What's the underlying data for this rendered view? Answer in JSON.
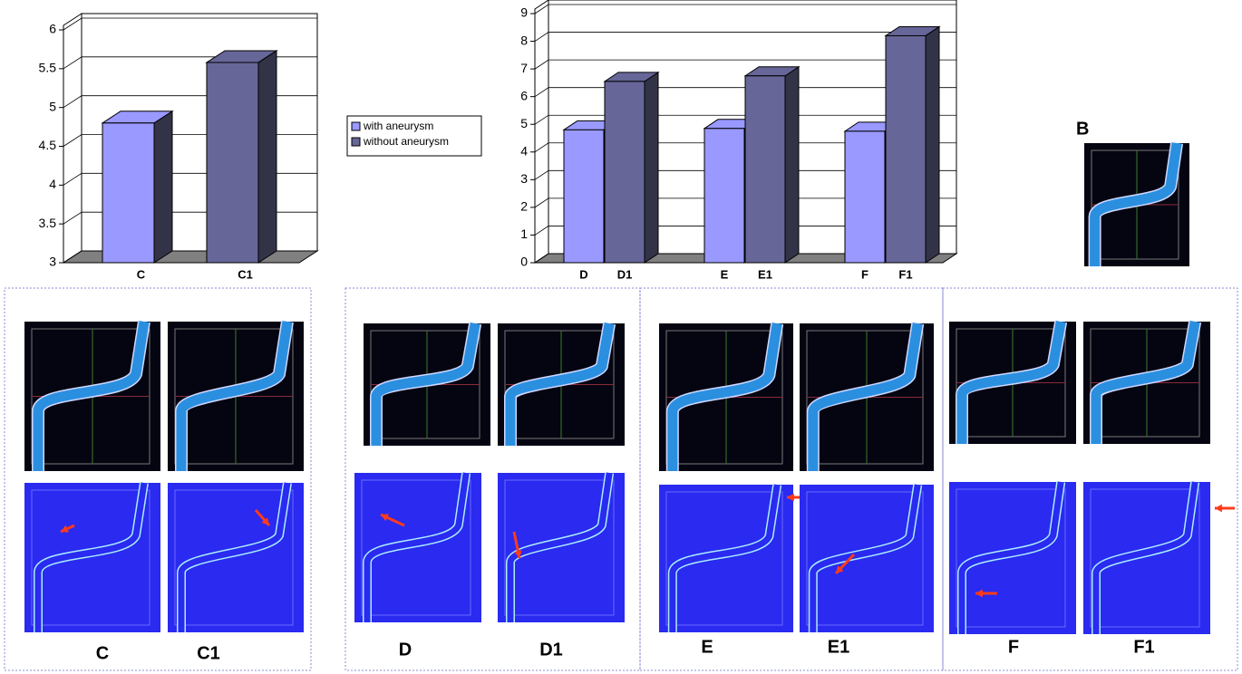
{
  "chart_data": [
    {
      "type": "bar",
      "ylim": [
        3,
        6
      ],
      "yticks": [
        3,
        3.5,
        4,
        4.5,
        5,
        5.5,
        6
      ],
      "categories": [
        "C",
        "C1"
      ],
      "series": [
        {
          "color": "#9999ff",
          "values": [
            4.8,
            null
          ]
        },
        {
          "color": "#666699",
          "values": [
            null,
            5.58
          ]
        }
      ]
    },
    {
      "type": "bar",
      "ylim": [
        0,
        9
      ],
      "yticks": [
        0,
        1,
        2,
        3,
        4,
        5,
        6,
        7,
        8,
        9
      ],
      "categories": [
        "D",
        "D1",
        "E",
        "E1",
        "F",
        "F1"
      ],
      "series": [
        {
          "name": "with aneurysm",
          "color": "#9999ff",
          "values": [
            4.8,
            null,
            4.85,
            null,
            4.75,
            null
          ]
        },
        {
          "name": "without aneurysm",
          "color": "#666699",
          "values": [
            null,
            6.55,
            null,
            6.75,
            null,
            8.2
          ]
        }
      ]
    }
  ],
  "figure": {
    "label": "B",
    "panels": [
      {
        "labels": [
          "C",
          "C1"
        ]
      },
      {
        "labels": [
          "D",
          "D1"
        ]
      },
      {
        "labels": [
          "E",
          "E1"
        ]
      },
      {
        "labels": [
          "F",
          "F1"
        ]
      }
    ]
  }
}
